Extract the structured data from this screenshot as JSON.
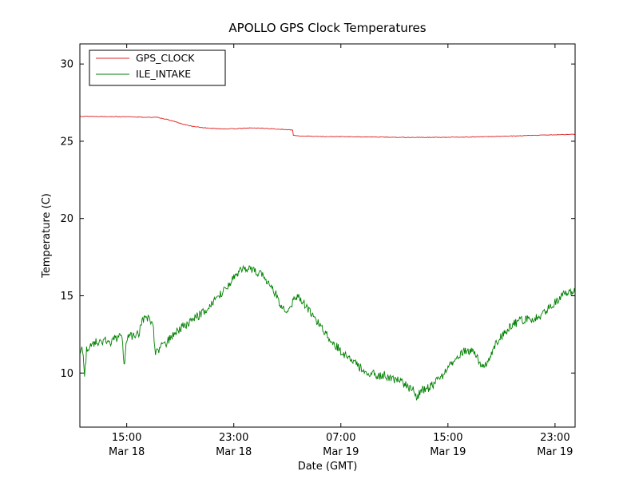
{
  "chart_data": {
    "type": "line",
    "title": "APOLLO GPS Clock Temperatures",
    "xlabel": "Date (GMT)",
    "ylabel": "Temperature (C)",
    "x_unit": "hours since Mar 18 00:00 GMT",
    "xlim": [
      11.5,
      48.5
    ],
    "ylim": [
      6.5,
      31.3
    ],
    "grid": false,
    "legend_position": "upper left",
    "x_ticks": [
      {
        "value": 15,
        "time": "15:00",
        "date": "Mar 18"
      },
      {
        "value": 23,
        "time": "23:00",
        "date": "Mar 18"
      },
      {
        "value": 31,
        "time": "07:00",
        "date": "Mar 19"
      },
      {
        "value": 39,
        "time": "15:00",
        "date": "Mar 19"
      },
      {
        "value": 47,
        "time": "23:00",
        "date": "Mar 19"
      }
    ],
    "y_ticks": [
      10,
      15,
      20,
      25,
      30
    ],
    "series": [
      {
        "name": "GPS_CLOCK",
        "color": "#e02020",
        "noise": 0.02,
        "points": [
          [
            11.5,
            26.62
          ],
          [
            14,
            26.6
          ],
          [
            15.5,
            26.58
          ],
          [
            16.5,
            26.55
          ],
          [
            17.3,
            26.55
          ],
          [
            17.8,
            26.45
          ],
          [
            18.5,
            26.3
          ],
          [
            19.2,
            26.1
          ],
          [
            20,
            25.95
          ],
          [
            20.8,
            25.87
          ],
          [
            21.6,
            25.82
          ],
          [
            22.5,
            25.8
          ],
          [
            23.3,
            25.82
          ],
          [
            24.2,
            25.86
          ],
          [
            25,
            25.85
          ],
          [
            26,
            25.8
          ],
          [
            26.8,
            25.76
          ],
          [
            27.4,
            25.72
          ],
          [
            27.45,
            25.38
          ],
          [
            28,
            25.34
          ],
          [
            29,
            25.32
          ],
          [
            30,
            25.3
          ],
          [
            31,
            25.3
          ],
          [
            32,
            25.29
          ],
          [
            33,
            25.28
          ],
          [
            34,
            25.27
          ],
          [
            35,
            25.26
          ],
          [
            36,
            25.25
          ],
          [
            37,
            25.25
          ],
          [
            38,
            25.25
          ],
          [
            39,
            25.26
          ],
          [
            40,
            25.27
          ],
          [
            41,
            25.28
          ],
          [
            42,
            25.3
          ],
          [
            43,
            25.32
          ],
          [
            44,
            25.34
          ],
          [
            45,
            25.37
          ],
          [
            46,
            25.4
          ],
          [
            47,
            25.42
          ],
          [
            48.5,
            25.45
          ]
        ]
      },
      {
        "name": "ILE_INTAKE",
        "color": "#008000",
        "noise": 0.28,
        "points": [
          [
            11.5,
            11.2
          ],
          [
            11.7,
            11.6
          ],
          [
            11.85,
            9.7
          ],
          [
            12.0,
            11.5
          ],
          [
            12.3,
            11.9
          ],
          [
            12.8,
            12.0
          ],
          [
            13.3,
            12.1
          ],
          [
            13.8,
            12.0
          ],
          [
            14.3,
            12.3
          ],
          [
            14.65,
            12.3
          ],
          [
            14.8,
            10.4
          ],
          [
            15.0,
            12.2
          ],
          [
            15.4,
            12.4
          ],
          [
            15.9,
            12.5
          ],
          [
            16.2,
            13.4
          ],
          [
            16.6,
            13.5
          ],
          [
            16.95,
            13.4
          ],
          [
            17.1,
            11.4
          ],
          [
            17.5,
            11.6
          ],
          [
            18,
            12.0
          ],
          [
            18.5,
            12.5
          ],
          [
            19,
            12.9
          ],
          [
            19.5,
            13.2
          ],
          [
            20,
            13.5
          ],
          [
            20.5,
            13.8
          ],
          [
            21,
            14.1
          ],
          [
            21.5,
            14.6
          ],
          [
            22,
            15.1
          ],
          [
            22.5,
            15.6
          ],
          [
            23,
            16.1
          ],
          [
            23.4,
            16.5
          ],
          [
            23.8,
            16.8
          ],
          [
            24.2,
            16.8
          ],
          [
            24.6,
            16.6
          ],
          [
            25,
            16.4
          ],
          [
            25.4,
            16.0
          ],
          [
            25.8,
            15.7
          ],
          [
            26.2,
            15.0
          ],
          [
            26.6,
            14.2
          ],
          [
            27,
            14.0
          ],
          [
            27.4,
            14.6
          ],
          [
            27.8,
            15.0
          ],
          [
            28.2,
            14.6
          ],
          [
            28.6,
            14.1
          ],
          [
            29,
            13.6
          ],
          [
            29.5,
            13.1
          ],
          [
            30,
            12.4
          ],
          [
            30.5,
            11.9
          ],
          [
            31,
            11.4
          ],
          [
            31.5,
            11.0
          ],
          [
            32,
            10.7
          ],
          [
            32.5,
            10.3
          ],
          [
            33,
            10.0
          ],
          [
            33.4,
            10.1
          ],
          [
            33.8,
            9.8
          ],
          [
            34.2,
            9.9
          ],
          [
            34.6,
            9.7
          ],
          [
            35,
            9.6
          ],
          [
            35.5,
            9.4
          ],
          [
            36,
            9.1
          ],
          [
            36.4,
            8.9
          ],
          [
            36.65,
            8.3
          ],
          [
            36.9,
            8.8
          ],
          [
            37.3,
            9.0
          ],
          [
            37.7,
            9.1
          ],
          [
            38.1,
            9.4
          ],
          [
            38.5,
            9.7
          ],
          [
            39,
            10.3
          ],
          [
            39.5,
            10.9
          ],
          [
            40,
            11.3
          ],
          [
            40.5,
            11.5
          ],
          [
            41,
            11.4
          ],
          [
            41.5,
            10.5
          ],
          [
            41.7,
            10.3
          ],
          [
            42,
            10.9
          ],
          [
            42.5,
            11.8
          ],
          [
            43,
            12.4
          ],
          [
            43.5,
            12.9
          ],
          [
            44,
            13.2
          ],
          [
            44.5,
            13.4
          ],
          [
            45,
            13.5
          ],
          [
            45.5,
            13.5
          ],
          [
            46,
            13.8
          ],
          [
            46.5,
            14.2
          ],
          [
            47,
            14.6
          ],
          [
            47.5,
            15.0
          ],
          [
            48,
            15.2
          ],
          [
            48.5,
            15.3
          ]
        ]
      }
    ]
  }
}
